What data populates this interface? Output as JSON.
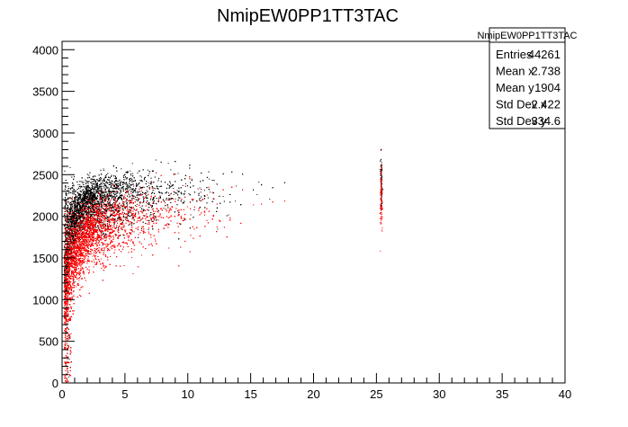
{
  "chart_data": {
    "type": "scatter",
    "title": "NmipEW0PP1TT3TAC",
    "xlabel": "",
    "ylabel": "",
    "xlim": [
      0,
      40
    ],
    "ylim": [
      0,
      4100
    ],
    "x_ticks": [
      0,
      5,
      10,
      15,
      20,
      25,
      30,
      35,
      40
    ],
    "y_ticks": [
      0,
      500,
      1000,
      1500,
      2000,
      2500,
      3000,
      3500,
      4000
    ],
    "x_tick_labels": [
      "0",
      "5",
      "10",
      "15",
      "20",
      "25",
      "30",
      "35",
      "40"
    ],
    "y_tick_labels": [
      "0",
      "500",
      "1000",
      "1500",
      "2000",
      "2500",
      "3000",
      "3500",
      "4000"
    ],
    "grid": false,
    "legend": "none",
    "series": [
      {
        "color": "#000000",
        "band_center": [
          [
            0.3,
            1300
          ],
          [
            0.6,
            1800
          ],
          [
            1,
            2050
          ],
          [
            2,
            2250
          ],
          [
            3,
            2300
          ],
          [
            4,
            2330
          ],
          [
            5,
            2350
          ],
          [
            7,
            2370
          ],
          [
            10,
            2380
          ],
          [
            15,
            2390
          ],
          [
            20,
            2400
          ],
          [
            25,
            2400
          ]
        ],
        "band_halfwidth": 110,
        "cloud_center": [
          [
            1,
            1900
          ],
          [
            2,
            2050
          ],
          [
            4,
            2100
          ],
          [
            6,
            2150
          ],
          [
            10,
            2200
          ],
          [
            15,
            2250
          ],
          [
            20,
            2280
          ],
          [
            25,
            2300
          ]
        ],
        "cloud_halfwidth": 160,
        "x_max": 25.5
      },
      {
        "color": "#ff0000",
        "band_center": [
          [
            0.3,
            900
          ],
          [
            0.6,
            1300
          ],
          [
            1,
            1600
          ],
          [
            2,
            1850
          ],
          [
            3,
            1950
          ],
          [
            4,
            2000
          ],
          [
            5,
            2050
          ],
          [
            7,
            2100
          ],
          [
            10,
            2130
          ],
          [
            15,
            2160
          ],
          [
            20,
            2180
          ],
          [
            25,
            2200
          ]
        ],
        "band_halfwidth": 150,
        "cloud_center": [
          [
            1,
            1500
          ],
          [
            2,
            1700
          ],
          [
            4,
            1800
          ],
          [
            6,
            1900
          ],
          [
            10,
            2000
          ],
          [
            15,
            2050
          ],
          [
            20,
            2100
          ],
          [
            25,
            2150
          ]
        ],
        "cloud_halfwidth": 200,
        "x_max": 25.5
      }
    ]
  },
  "stats_box": {
    "name": "NmipEW0PP1TT3TAC",
    "rows": [
      {
        "label": "Entries",
        "value": "44261"
      },
      {
        "label": "Mean x",
        "value": "2.738"
      },
      {
        "label": "Mean y",
        "value": "1904"
      },
      {
        "label": "Std Dev x",
        "value": "2.422"
      },
      {
        "label": "Std Dev y",
        "value": "334.6"
      }
    ]
  }
}
